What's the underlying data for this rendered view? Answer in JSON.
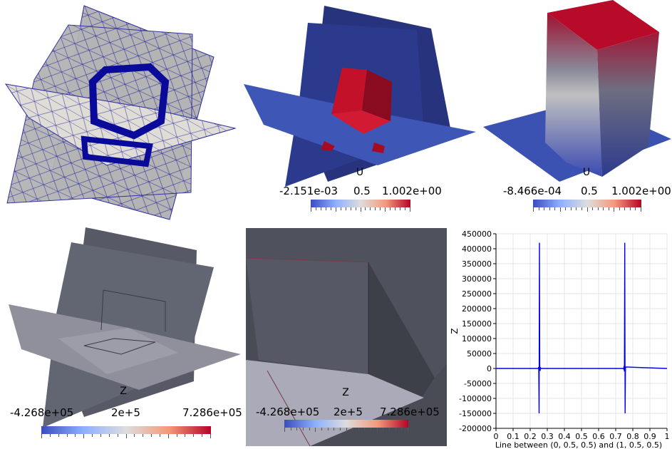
{
  "panels": {
    "p2": {
      "field": "U",
      "min_label": "-2.151e-03",
      "mid_label": "0.5",
      "max_label": "1.002e+00"
    },
    "p3": {
      "field": "U",
      "min_label": "-8.466e-04",
      "mid_label": "0.5",
      "max_label": "1.002e+00"
    },
    "p4": {
      "field": "Z",
      "min_label": "-4.268e+05",
      "mid_label": "2e+5",
      "max_label": "7.286e+05"
    },
    "p5": {
      "field": "Z",
      "min_label": "-4.268e+05",
      "mid_label": "2e+5",
      "max_label": "7.286e+05"
    }
  },
  "colors": {
    "cold": "#3b4cc0",
    "neutral": "#dddddd",
    "hot": "#b40426",
    "mesh": "#1a1aa6",
    "line": "#0000ee"
  },
  "chart_data": {
    "type": "line",
    "xlabel": "Line between (0, 0.5, 0.5)  and  (1, 0.5, 0.5)",
    "ylabel": "Z",
    "xlim": [
      0,
      1
    ],
    "ylim": [
      -200000,
      450000
    ],
    "xticks": [
      "0",
      "0.1",
      "0.2",
      "0.3",
      "0.4",
      "0.5",
      "0.6",
      "0.7",
      "0.8",
      "0.9",
      "1"
    ],
    "yticks": [
      "-200000",
      "-150000",
      "-100000",
      "-50000",
      "0",
      "50000",
      "100000",
      "150000",
      "200000",
      "250000",
      "300000",
      "350000",
      "400000",
      "450000"
    ],
    "grid": true,
    "series": [
      {
        "x": [
          0,
          0.248,
          0.25,
          0.252,
          0.254,
          0.256,
          0.258,
          0.26,
          0.262,
          0.745,
          0.747,
          0.749,
          0.751,
          0.753,
          0.755,
          0.757,
          1.0
        ],
        "y": [
          0,
          0,
          5000,
          -150000,
          420000,
          10000,
          -8000,
          2000,
          0,
          0,
          -2000,
          8000,
          -10000,
          420000,
          -150000,
          5000,
          0
        ]
      }
    ]
  }
}
